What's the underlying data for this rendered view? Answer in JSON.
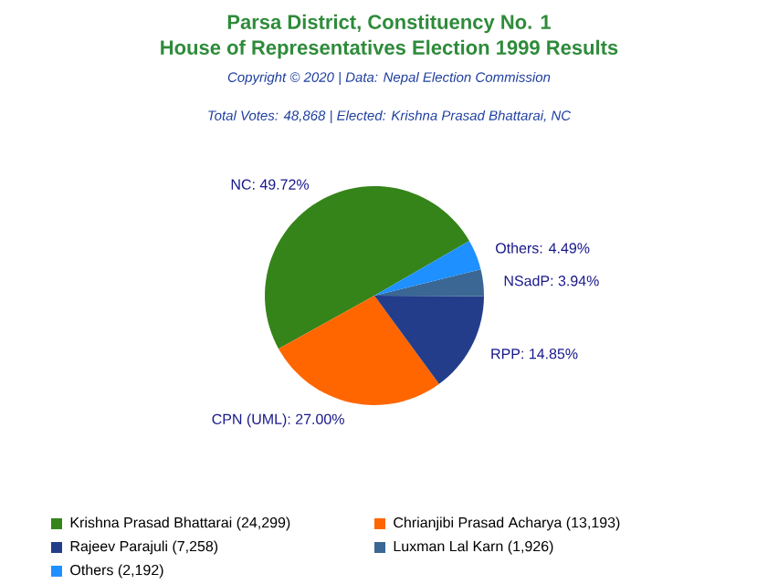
{
  "chart_data": {
    "type": "pie",
    "title": "Parsa District, Constituency No. 1",
    "subtitle": "House of Representatives Election 1999 Results",
    "annotations": [
      "Copyright © 2020 | Data: Nepal Election Commission",
      "Total Votes: 48,868 | Elected: Krishna Prasad Bhattarai, NC"
    ],
    "categories": [
      "Krishna Prasad Bhattarai (24,299)",
      "Chrianjibi Prasad Acharya (13,193)",
      "Rajeev Parajuli (7,258)",
      "Luxman Lal Karn (1,926)",
      "Others (2,192)"
    ],
    "values": [
      49.72,
      27.0,
      14.85,
      3.94,
      4.49
    ],
    "value_labels": [
      "NC: 49.72%",
      "CPN (UML): 27.00%",
      "RPP: 14.85%",
      "NSadP: 3.94%",
      "Others: 4.49%"
    ],
    "colors": [
      "#358419",
      "#ff6600",
      "#233d8a",
      "#3a6793",
      "#1e90ff"
    ],
    "legend": "bottom"
  }
}
